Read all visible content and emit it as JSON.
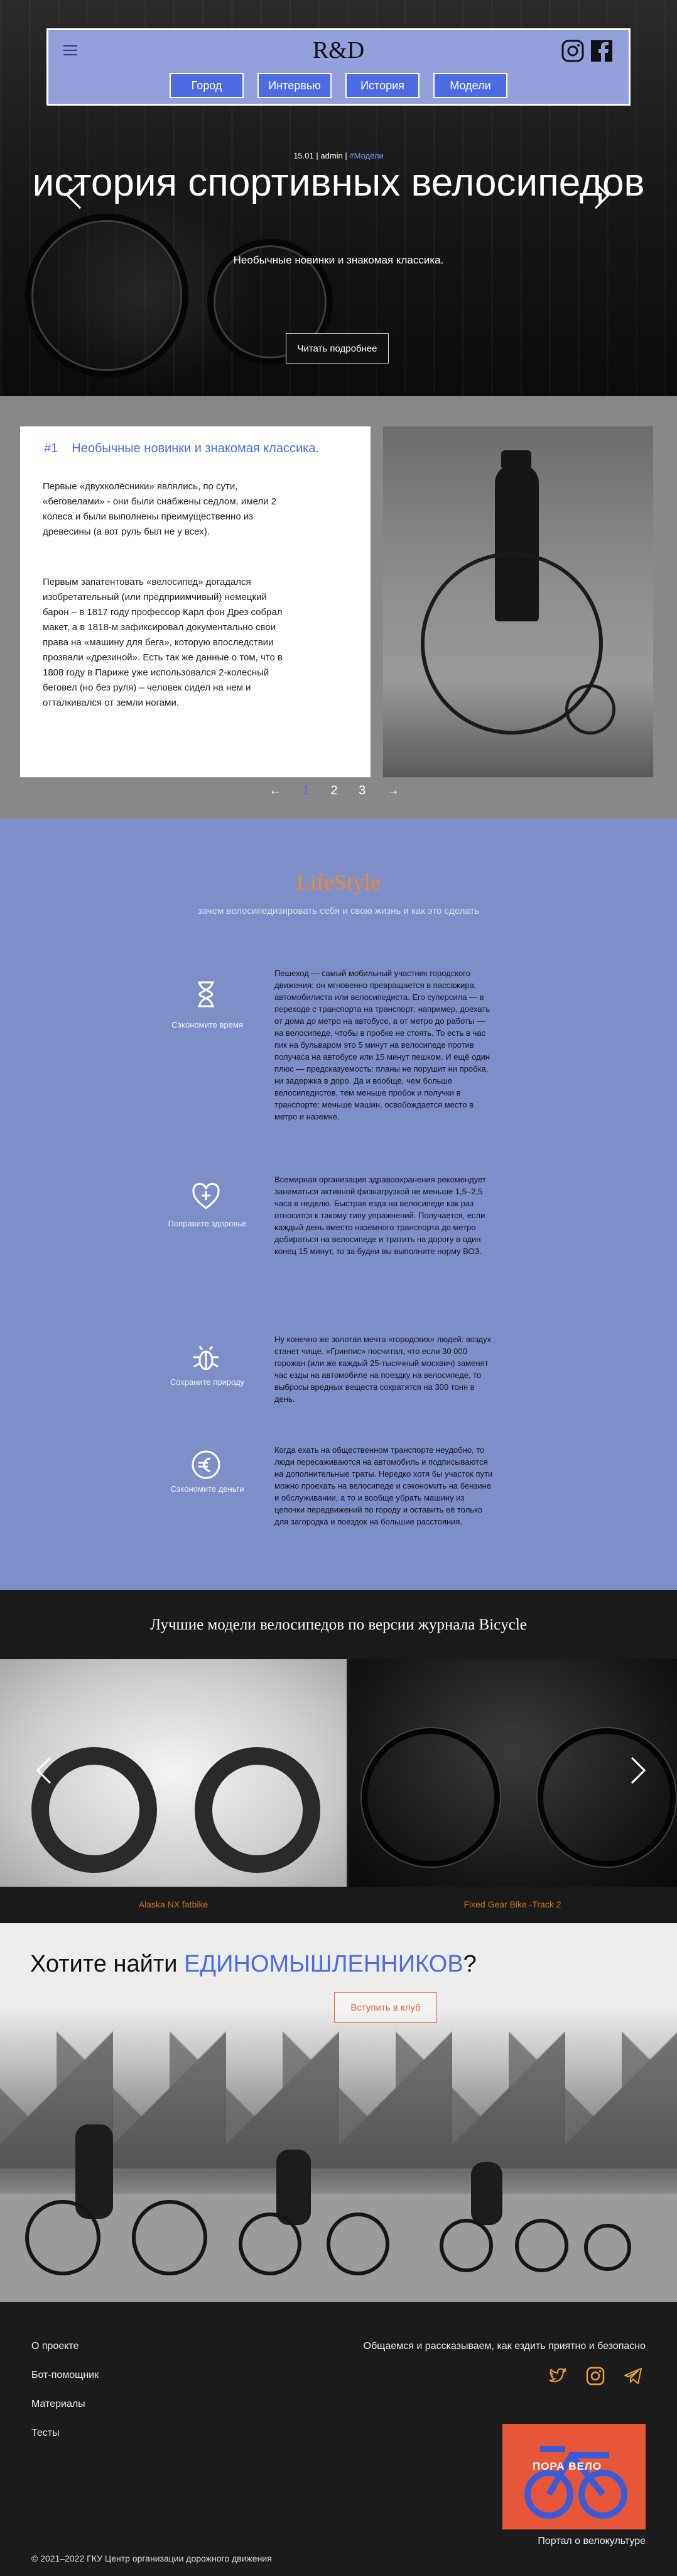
{
  "header": {
    "brand": "R&D",
    "tabs": [
      "Город",
      "Интервью",
      "История",
      "Модели"
    ],
    "icons": [
      "menu-icon",
      "instagram-icon",
      "facebook-icon"
    ]
  },
  "hero": {
    "date": "15.01",
    "author": "admin",
    "tag": "#Модели",
    "title": "история спортивных велосипедов",
    "subtitle": "Необычные новинки и знакомая классика.",
    "button": "Читать подробнее"
  },
  "story": {
    "number": "#1",
    "heading": "Необычные новинки и знакомая классика.",
    "para1": "Первые «двухколёсники» являлись, по сути, «беговелами» - они были снабжены седлом, имели 2 колеса и были выполнены преимущественно из древесины (а вот руль был не у всех).",
    "para2": "Первым запатентовать «велосипед» догадался изобретательный (или предприимчивый) немецкий барон – в 1817 году профессор Карл фон Дрез собрал макет, а в 1818-м зафиксировал документально свои права на «машину для бега», которую впоследствии прозвали «дрезиной». Есть так же данные о том, что в 1808 году в Париже уже использовался 2-колесный беговел (но без руля) – человек сидел на нем и отталкивался от земли ногами.",
    "pager": {
      "prev": "←",
      "pages": [
        "1",
        "2",
        "3"
      ],
      "current": "1",
      "next": "→"
    }
  },
  "lifestyle": {
    "title": "LifeStyle",
    "subtitle": "зачем велосипедизировать себя и свою жизнь и как это сделать",
    "items": [
      {
        "icon": "hourglass-icon",
        "label": "Сэкономите время",
        "text": "Пешеход — самый мобильный участник городского движения: он мгновенно превращается в пассажира, автомобилиста или велосипедиста. Его суперсила — в переходе с транспорта на транспорт: например, доехать от дома до метро на автобусе, а от метро до работы — на велосипеде, чтобы в пробке не стоять. То есть в час пик на бульваром это 5 минут на велосипеде против получаса на автобусе или 15 минут пешком. И ещё один плюс — предсказуемость: планы не порушит ни пробка, ни задержка в доро. Да и вообще, чем больше велосипедистов, тем меньше пробок и получки в транспорте: меньше машин, освобождается место в метро и наземке."
      },
      {
        "icon": "heart-plus-icon",
        "label": "Поправите здоровье",
        "text": "Всемирная организация здравоохранения рекомендует заниматься активной физнагрузкой не меньше 1,5–2,5 часа в неделю. Быстрая езда на велосипеде как раз относится к такому типу упражнений. Получается, если каждый день вместо наземного транспорта до метро добираться на велосипеде и тратить на дорогу в один конец 15 минут, то за будни вы выполните норму ВОЗ."
      },
      {
        "icon": "bug-icon",
        "label": "Сохраните природу",
        "text": "Ну конечно же золотая мечта «городских» людей: воздух станет чище. «Гринпис» посчитал, что если 30 000 горожан (или же каждый 25-тысячный москвич) заменят час езды на автомобиле на поездку на велосипеде, то выбросы вредных веществ сократятся на 300 тонн в день."
      },
      {
        "icon": "euro-icon",
        "label": "Сэкономите деньги",
        "text": "Когда ехать на общественном транспорте неудобно, то люди пересаживаются на автомобиль и подписываются на дополнительные траты. Нередко хотя бы участок пути можно проехать на велосипеде и сэкономить на бензине и обслуживании, а то и вообще убрать машину из цепочки передвижений по городу и оставить её только для загородка и поездок на большие расстояния."
      }
    ]
  },
  "models": {
    "title": "Лучшие модели велосипедов по версии журнала Bicycle",
    "items": [
      {
        "name": "Alaska NX fatbike"
      },
      {
        "name": "Fixed Gear Bike -Track 2"
      }
    ]
  },
  "join": {
    "title_prefix": "Хотите найти ",
    "title_highlight": "ЕДИНОМЫШЛЕННИКОВ",
    "title_suffix": "?",
    "button": "Вступить в клуб"
  },
  "footer": {
    "links": [
      "О проекте",
      "Бот-помощник",
      "Материалы",
      "Тесты"
    ],
    "slogan": "Общаемся и рассказываем, как ездить приятно и безопасно",
    "social": [
      "twitter-icon",
      "instagram-icon",
      "telegram-icon"
    ],
    "logo_text": "ПОРА ВЕЛО",
    "portal": "Портал о велокультуре",
    "copyright": "© 2021–2022 ГКУ Центр организации дорожного движения"
  },
  "colors": {
    "accent": "#4d6be3",
    "lavender": "#7e8ec8",
    "orange": "#f08a24",
    "dark": "#1b1b1b"
  }
}
